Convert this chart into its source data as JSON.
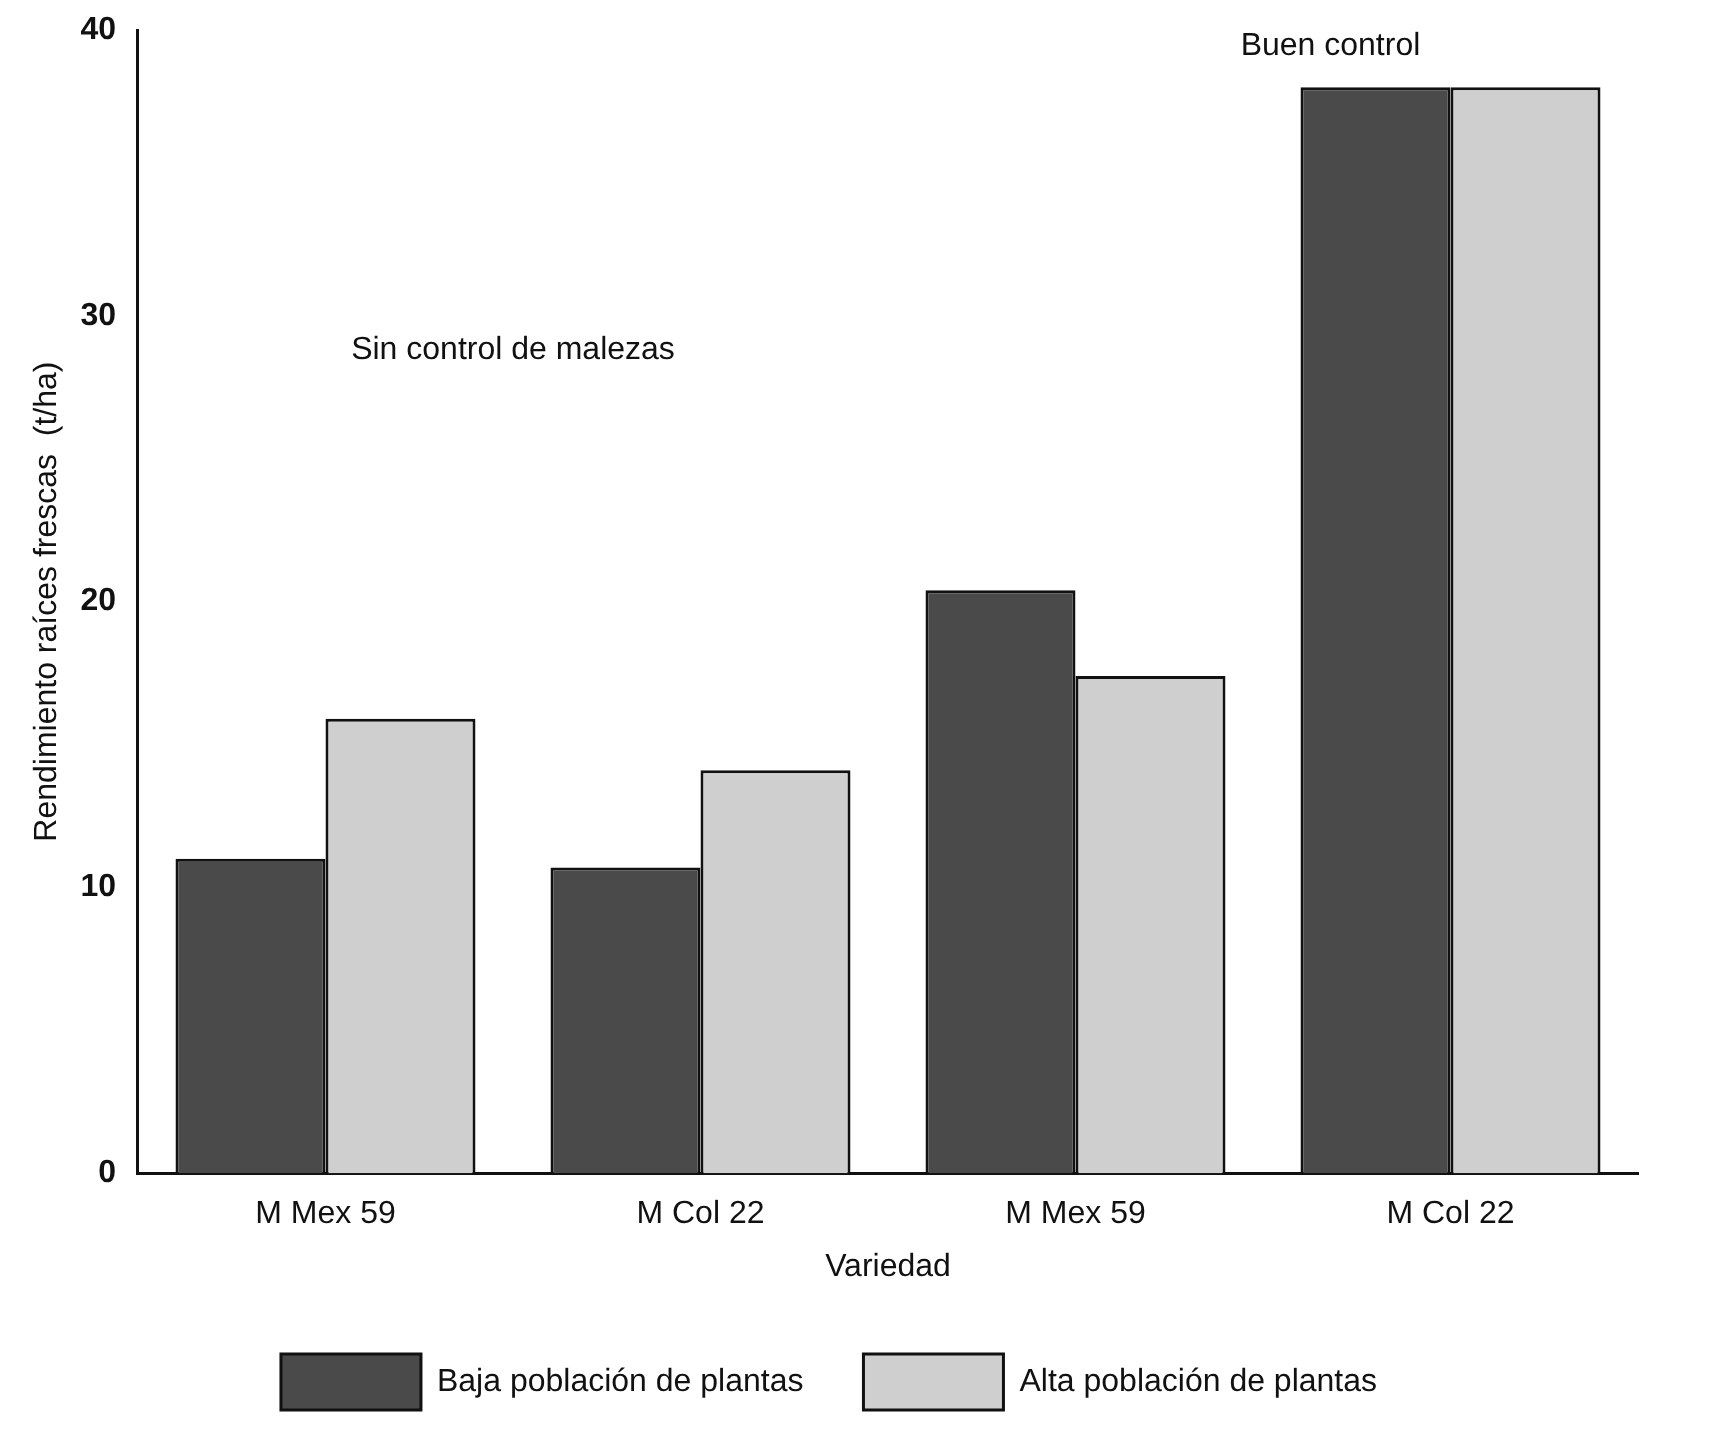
{
  "chart_data": {
    "type": "bar",
    "xlabel": "Variedad",
    "ylabel": "Rendimiento raíces frescas  (t/ha)",
    "categories": [
      "M Mex 59",
      "M Col 22",
      "M Mex 59",
      "M Col 22"
    ],
    "series": [
      {
        "name": "Baja población de plantas",
        "color": "#4a4a4a",
        "values": [
          11,
          10.7,
          20.4,
          38
        ]
      },
      {
        "name": "Alta población de plantas",
        "color": "#cfcfcf",
        "values": [
          15.9,
          14.1,
          17.4,
          38
        ]
      }
    ],
    "ylim": [
      0,
      40
    ],
    "yticks": [
      0,
      10,
      20,
      30,
      40
    ],
    "grid": false,
    "legend": "bottom",
    "annotations": [
      "Sin control de malezas",
      "Buen control"
    ]
  }
}
